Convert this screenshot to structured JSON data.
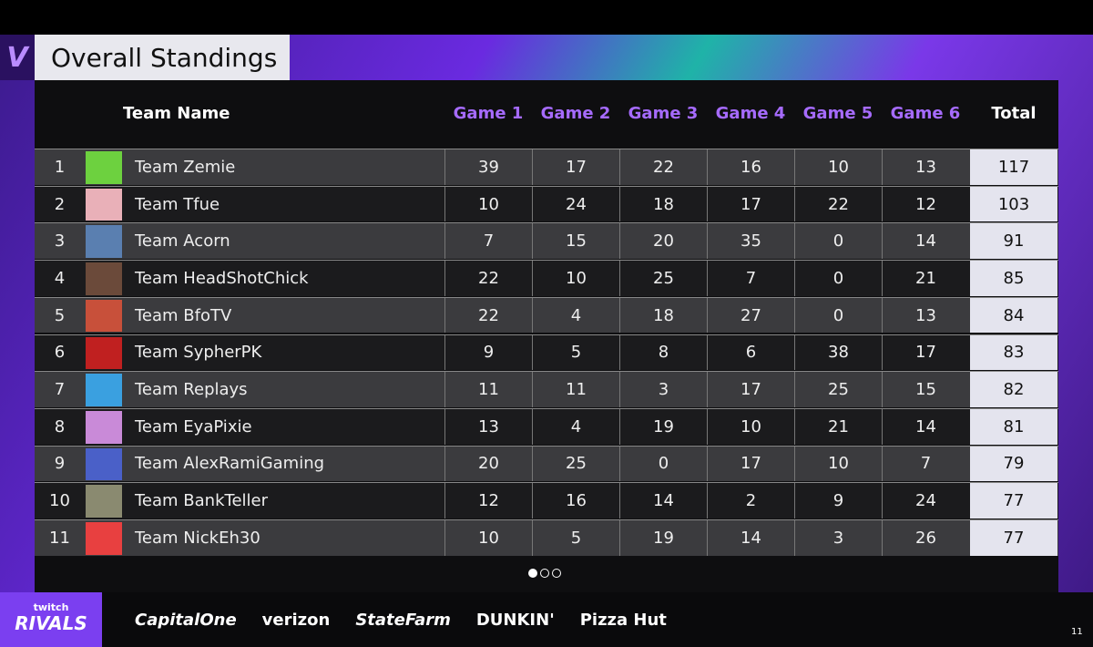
{
  "logo": "V",
  "header": {
    "title": "Overall Standings"
  },
  "table": {
    "columns": [
      "Team Name",
      "Game 1",
      "Game 2",
      "Game 3",
      "Game 4",
      "Game 5",
      "Game 6",
      "Total"
    ],
    "rows": [
      [
        1,
        "Team Zemie",
        39,
        17,
        22,
        16,
        10,
        13,
        117
      ],
      [
        2,
        "Team Tfue",
        10,
        24,
        18,
        17,
        22,
        12,
        103
      ],
      [
        3,
        "Team Acorn",
        7,
        15,
        20,
        35,
        0,
        14,
        91
      ],
      [
        4,
        "Team HeadShotChick",
        22,
        10,
        25,
        7,
        0,
        21,
        85
      ],
      [
        5,
        "Team BfoTV",
        22,
        4,
        18,
        27,
        0,
        13,
        84
      ],
      [
        6,
        "Team SypherPK",
        9,
        5,
        8,
        6,
        38,
        17,
        83
      ],
      [
        7,
        "Team Replays",
        11,
        11,
        3,
        17,
        25,
        15,
        82
      ],
      [
        8,
        "Team EyaPixie",
        13,
        4,
        19,
        10,
        21,
        14,
        81
      ],
      [
        9,
        "Team AlexRamiGaming",
        20,
        25,
        0,
        17,
        10,
        7,
        79
      ],
      [
        10,
        "Team BankTeller",
        12,
        16,
        14,
        2,
        9,
        24,
        77
      ],
      [
        11,
        "Team NickEh30",
        10,
        5,
        19,
        14,
        3,
        26,
        77
      ]
    ]
  },
  "footer": {
    "brand": [
      "twitch",
      "RIVALS"
    ],
    "sponsors": [
      "CapitalOne",
      "verizon",
      "StateFarm",
      "DUNKIN'",
      "Pizza Hut"
    ],
    "page_number": "11"
  }
}
